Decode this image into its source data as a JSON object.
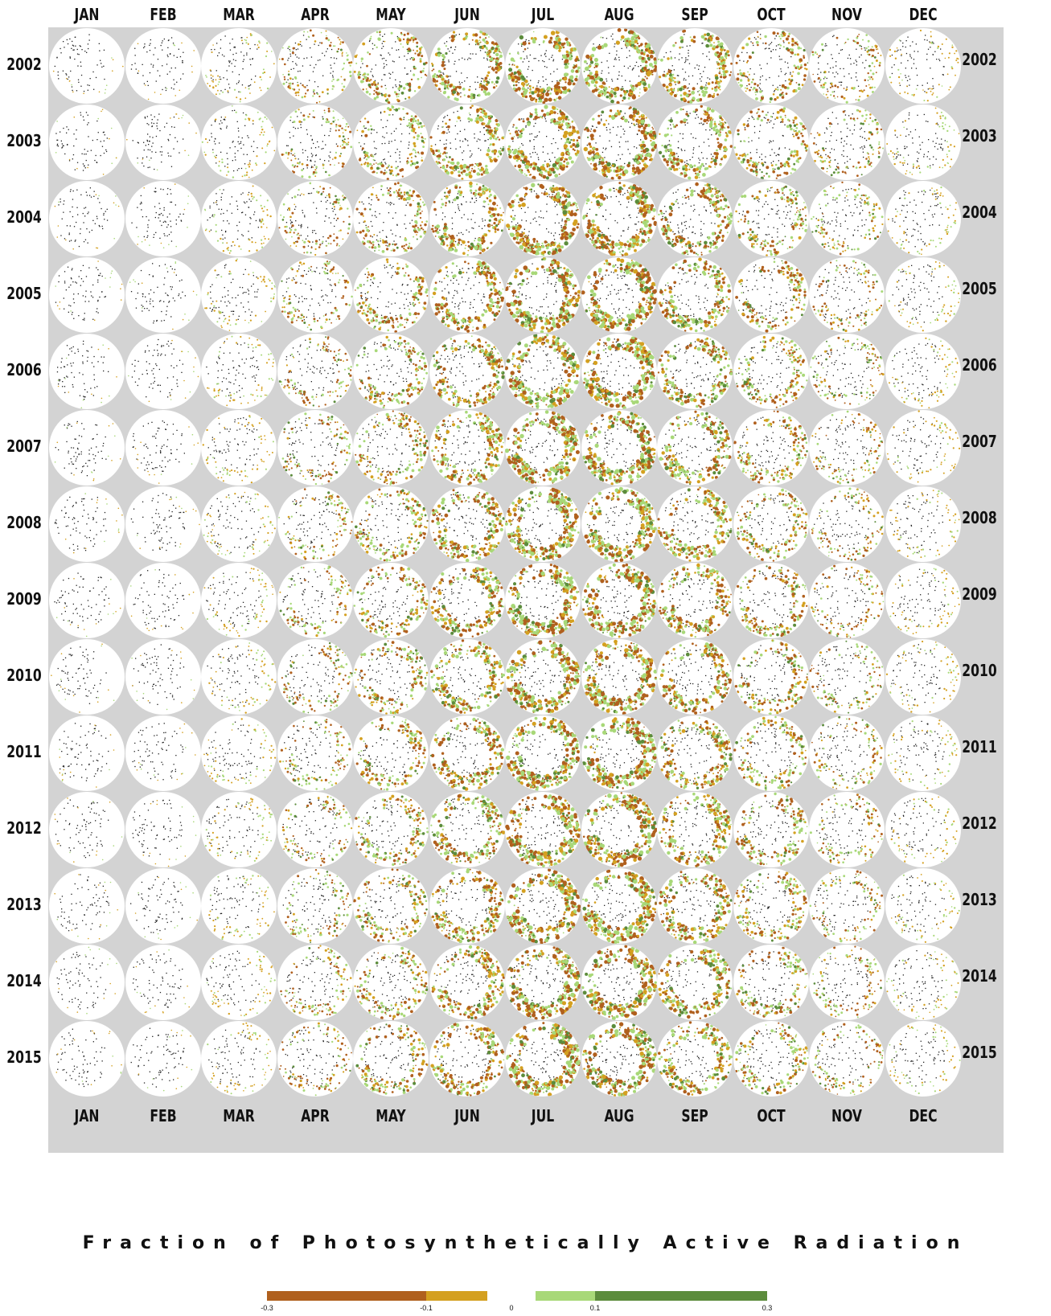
{
  "months_top": [
    "JAN",
    "FEB",
    "MAR",
    "APR",
    "MAY",
    "JUN",
    "JUL",
    "AUG",
    "SEP",
    "OCT",
    "NOV",
    "DEC"
  ],
  "months_bottom": [
    "JAN",
    "FEB",
    "MAR",
    "APR",
    "MAY",
    "JUN",
    "JUL",
    "AUG",
    "SEP",
    "OCT",
    "NOV",
    "DEC"
  ],
  "years": [
    "2002",
    "2003",
    "2004",
    "2005",
    "2006",
    "2007",
    "2008",
    "2009",
    "2010",
    "2011",
    "2012",
    "2013",
    "2014",
    "2015"
  ],
  "legend": {
    "title": "Fraction of Photosynthetically Active Radiation",
    "ticks": [
      "-0.3",
      "-0.1",
      "0",
      "0.1",
      "0.3"
    ],
    "colors": {
      "strong_negative": "#b0601e",
      "weak_negative": "#d4a020",
      "weak_positive": "#a8d878",
      "strong_positive": "#5c8c3c",
      "panel_background": "#d3d3d3",
      "disc": "#ffffff",
      "coastline": "#222222"
    }
  }
}
